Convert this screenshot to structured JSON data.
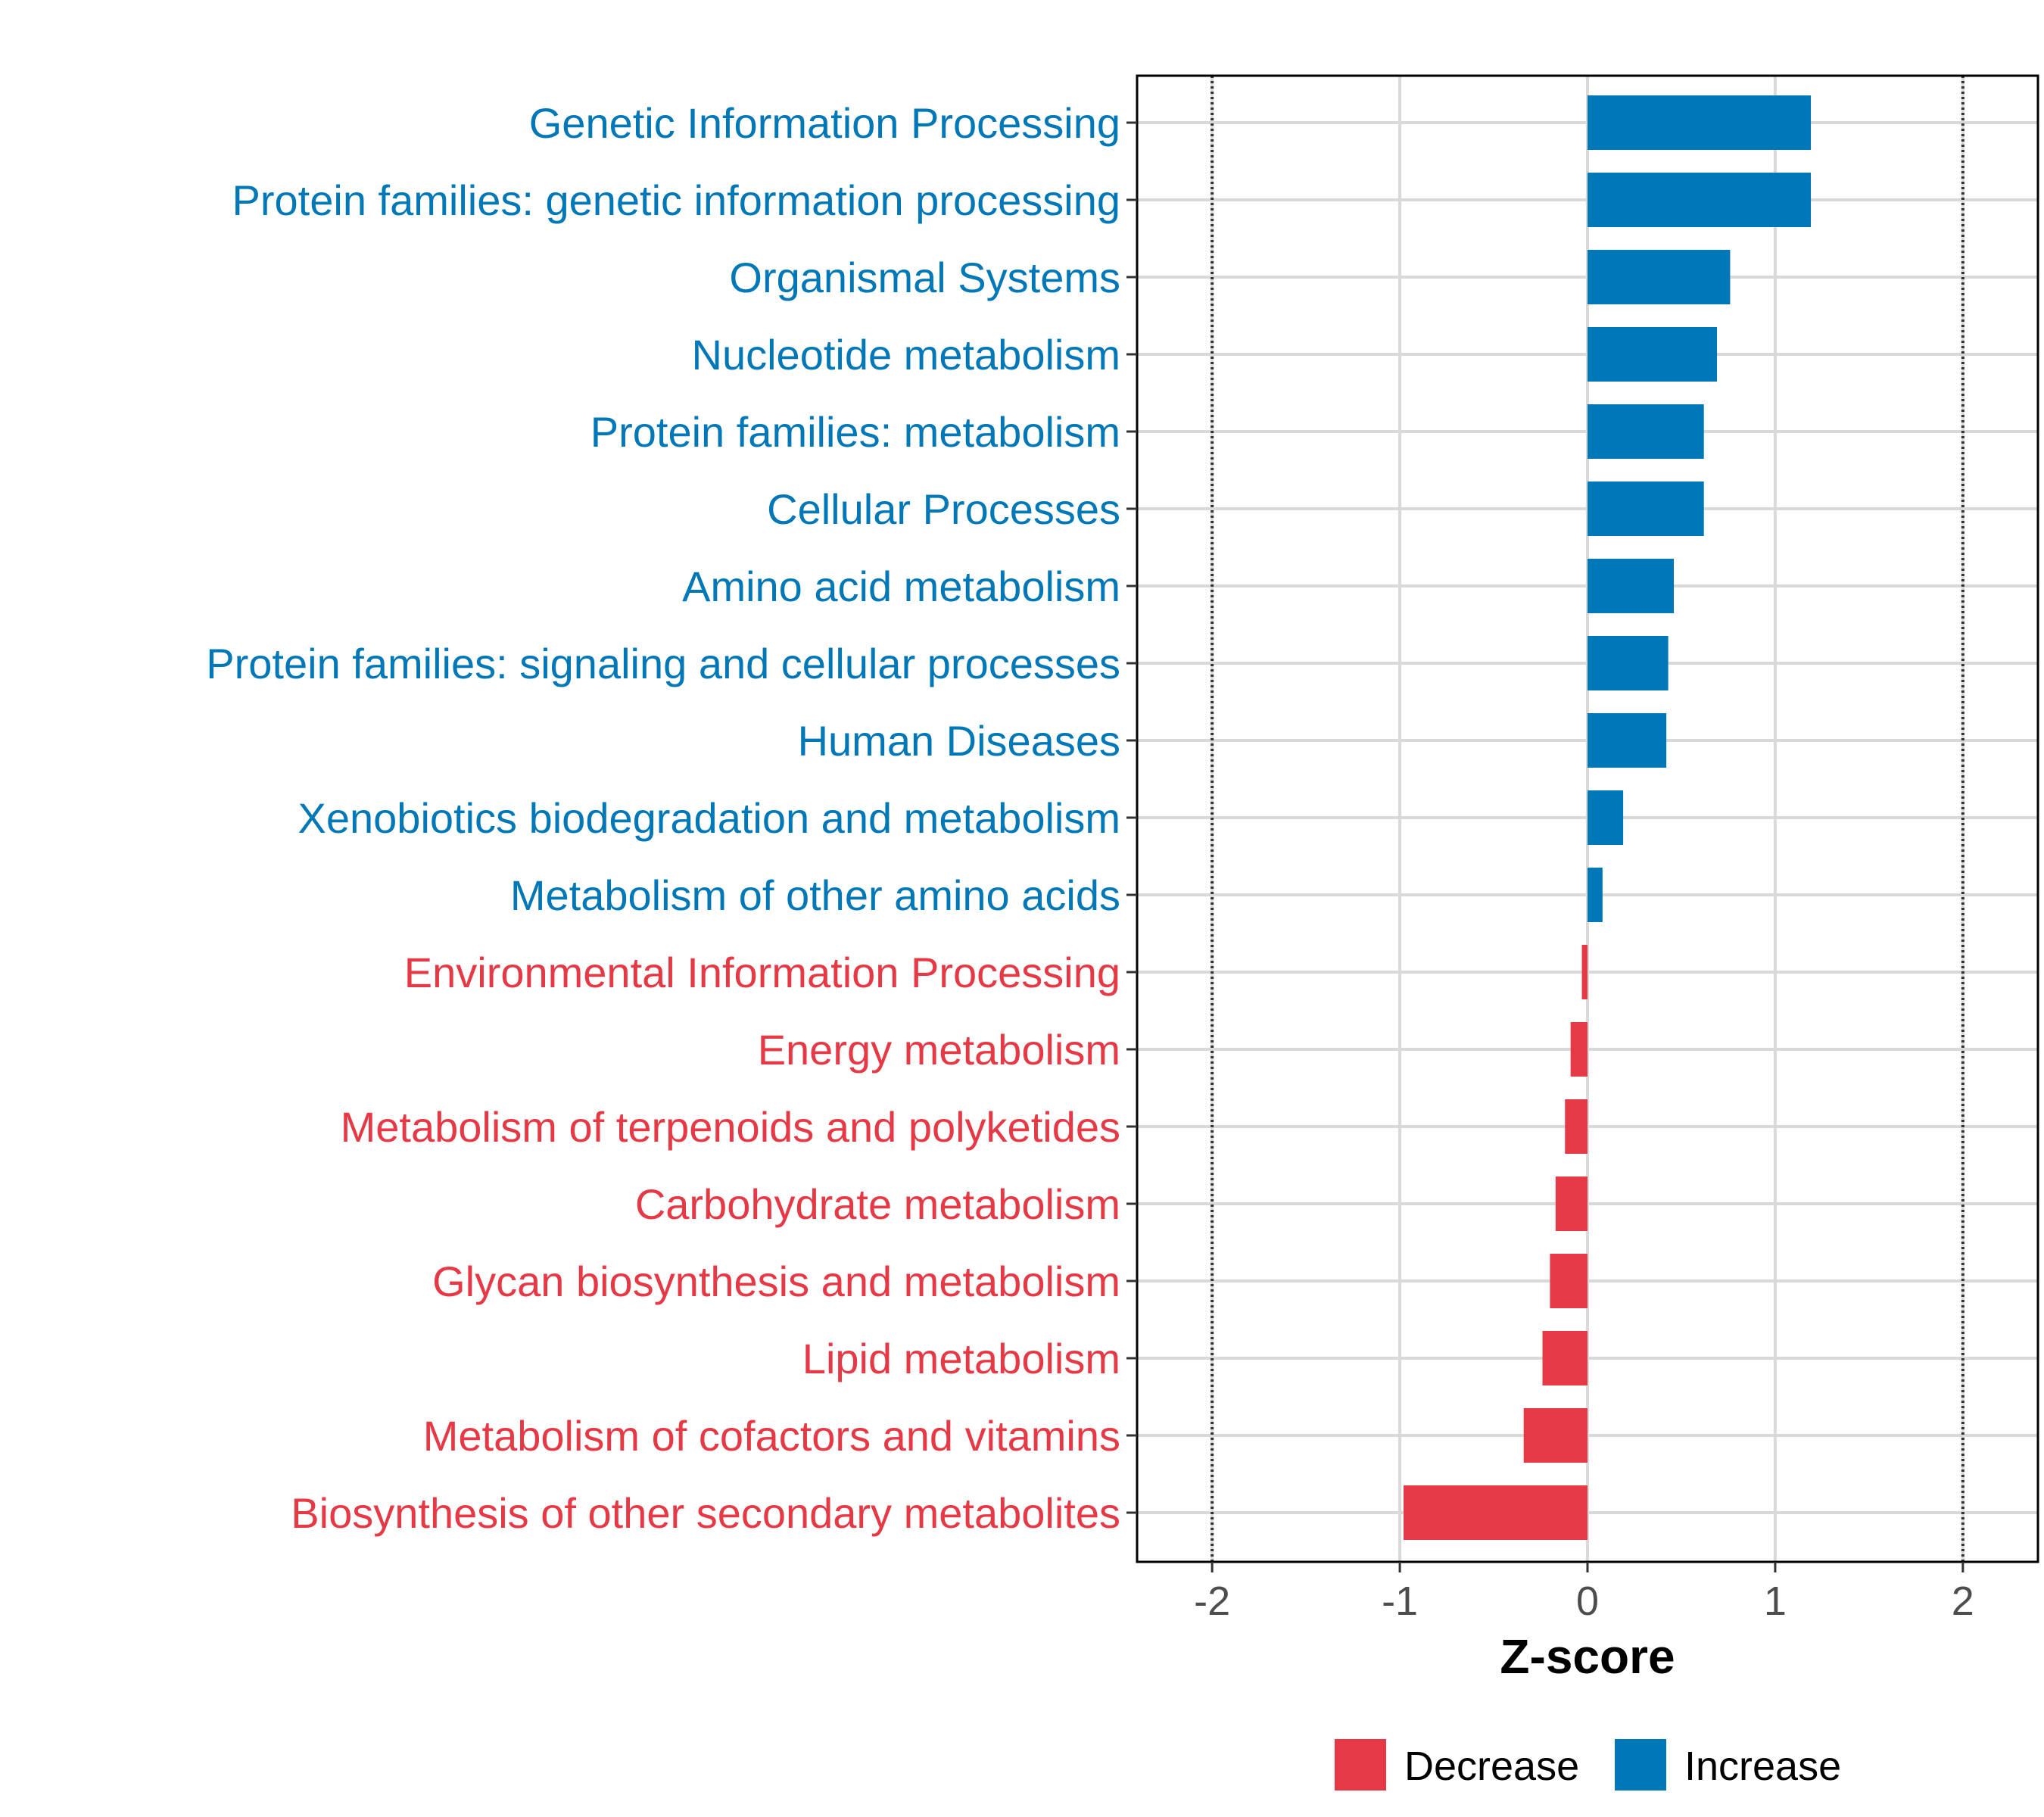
{
  "chart_data": {
    "type": "bar",
    "orientation": "horizontal",
    "xlabel": "Z-score",
    "xlim": [
      -2.4,
      2.4
    ],
    "xticks": [
      -2,
      -1,
      0,
      1,
      2
    ],
    "reference_lines": [
      -2,
      2
    ],
    "categories": [
      "Genetic Information Processing",
      "Protein families: genetic information processing",
      "Organismal Systems",
      "Nucleotide metabolism",
      "Protein families: metabolism",
      "Cellular Processes",
      "Amino acid metabolism",
      "Protein families: signaling and cellular processes",
      "Human Diseases",
      "Xenobiotics biodegradation and metabolism",
      "Metabolism of other amino acids",
      "Environmental Information Processing",
      "Energy metabolism",
      "Metabolism of terpenoids and polyketides",
      "Carbohydrate metabolism",
      "Glycan biosynthesis and metabolism",
      "Lipid metabolism",
      "Metabolism of cofactors and vitamins",
      "Biosynthesis of other secondary metabolites"
    ],
    "values": [
      1.19,
      1.19,
      0.76,
      0.69,
      0.62,
      0.62,
      0.46,
      0.43,
      0.42,
      0.19,
      0.08,
      -0.03,
      -0.09,
      -0.12,
      -0.17,
      -0.2,
      -0.24,
      -0.34,
      -0.98
    ],
    "groups": [
      "Increase",
      "Increase",
      "Increase",
      "Increase",
      "Increase",
      "Increase",
      "Increase",
      "Increase",
      "Increase",
      "Increase",
      "Increase",
      "Decrease",
      "Decrease",
      "Decrease",
      "Decrease",
      "Decrease",
      "Decrease",
      "Decrease",
      "Decrease"
    ],
    "legend": [
      {
        "name": "Decrease",
        "color": "#e63946"
      },
      {
        "name": "Increase",
        "color": "#0077b6"
      }
    ],
    "legend_position": "bottom"
  }
}
